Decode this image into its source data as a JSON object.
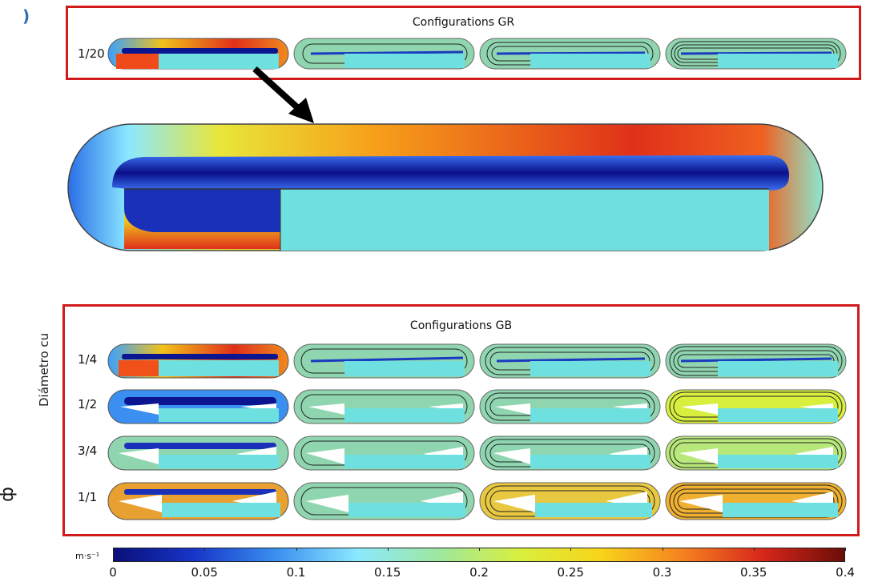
{
  "panel_label": ")",
  "gr": {
    "title": "Configurations GR",
    "row_label": "1/20"
  },
  "gb": {
    "title": "Configurations GB",
    "row_labels": [
      "1/4",
      "1/2",
      "3/4",
      "1/1"
    ]
  },
  "y_axis_label": "Diámetro cu",
  "side_mark": "ф",
  "colorbar": {
    "unit": "m·s⁻¹",
    "ticks": [
      "0",
      "0.05",
      "0.1",
      "0.15",
      "0.2",
      "0.25",
      "0.3",
      "0.35",
      "0.4"
    ],
    "min": 0,
    "max": 0.4,
    "colors": [
      "#0a0f7a",
      "#1736c8",
      "#3a8ff0",
      "#8be8ff",
      "#9ee7a0",
      "#d8ef3e",
      "#f8d41a",
      "#f58220",
      "#d7261b",
      "#6b0d08"
    ]
  }
}
